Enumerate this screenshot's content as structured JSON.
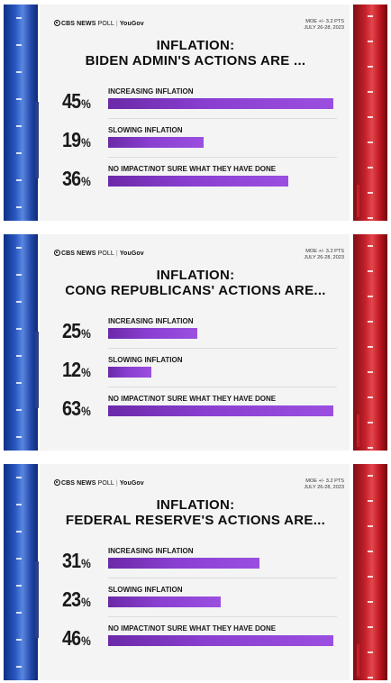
{
  "panels": [
    {
      "brand": {
        "network": "CBS NEWS",
        "poll": "POLL",
        "partner": "YouGov"
      },
      "moe": [
        "MOE +/- 3.2 PTS",
        "JULY 26-28, 2023"
      ],
      "headline": [
        "INFLATION:",
        "BIDEN ADMIN'S ACTIONS ARE ..."
      ],
      "rows": [
        {
          "pct": "45",
          "label": "INCREASING INFLATION"
        },
        {
          "pct": "19",
          "label": "SLOWING INFLATION"
        },
        {
          "pct": "36",
          "label": "NO IMPACT/NOT SURE WHAT THEY HAVE DONE"
        }
      ]
    },
    {
      "brand": {
        "network": "CBS NEWS",
        "poll": "POLL",
        "partner": "YouGov"
      },
      "moe": [
        "MOE +/- 3.2 PTS",
        "JULY 26-28, 2023"
      ],
      "headline": [
        "INFLATION:",
        "CONG REPUBLICANS' ACTIONS ARE..."
      ],
      "rows": [
        {
          "pct": "25",
          "label": "INCREASING INFLATION"
        },
        {
          "pct": "12",
          "label": "SLOWING INFLATION"
        },
        {
          "pct": "63",
          "label": "NO IMPACT/NOT SURE WHAT THEY HAVE DONE"
        }
      ]
    },
    {
      "brand": {
        "network": "CBS NEWS",
        "poll": "POLL",
        "partner": "YouGov"
      },
      "moe": [
        "MOE +/- 3.2 PTS",
        "JULY 26-28, 2023"
      ],
      "headline": [
        "INFLATION:",
        "FEDERAL RESERVE'S ACTIONS ARE..."
      ],
      "rows": [
        {
          "pct": "31",
          "label": "INCREASING INFLATION"
        },
        {
          "pct": "23",
          "label": "SLOWING INFLATION"
        },
        {
          "pct": "46",
          "label": "NO IMPACT/NOT SURE WHAT THEY HAVE DONE"
        }
      ]
    }
  ],
  "pct_symbol": "%",
  "colors": {
    "bar": "#8a3fd1",
    "blue_stripe": "#2447a8",
    "red_stripe": "#c4202a"
  },
  "chart_data": [
    {
      "type": "bar",
      "title": "INFLATION: BIDEN ADMIN'S ACTIONS ARE ...",
      "categories": [
        "INCREASING INFLATION",
        "SLOWING INFLATION",
        "NO IMPACT/NOT SURE WHAT THEY HAVE DONE"
      ],
      "values": [
        45,
        19,
        36
      ],
      "unit": "%"
    },
    {
      "type": "bar",
      "title": "INFLATION: CONG REPUBLICANS' ACTIONS ARE...",
      "categories": [
        "INCREASING INFLATION",
        "SLOWING INFLATION",
        "NO IMPACT/NOT SURE WHAT THEY HAVE DONE"
      ],
      "values": [
        25,
        12,
        63
      ],
      "unit": "%"
    },
    {
      "type": "bar",
      "title": "INFLATION: FEDERAL RESERVE'S ACTIONS ARE...",
      "categories": [
        "INCREASING INFLATION",
        "SLOWING INFLATION",
        "NO IMPACT/NOT SURE WHAT THEY HAVE DONE"
      ],
      "values": [
        31,
        23,
        46
      ],
      "unit": "%"
    }
  ]
}
